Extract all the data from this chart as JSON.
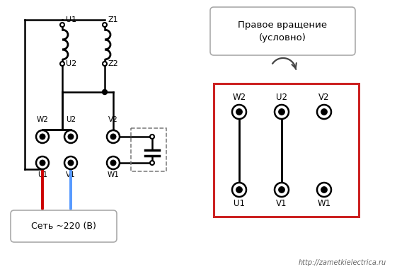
{
  "bg_color": "#ffffff",
  "line_color": "#000000",
  "red_color": "#cc0000",
  "blue_color": "#5599ff",
  "box_red_color": "#cc2222",
  "gray_text": "#555555",
  "watermark": "http://zametkielectrica.ru",
  "seti_text": "Сеть ~220 (В)",
  "pravoe_text": "Правое вращение\n(условно)"
}
